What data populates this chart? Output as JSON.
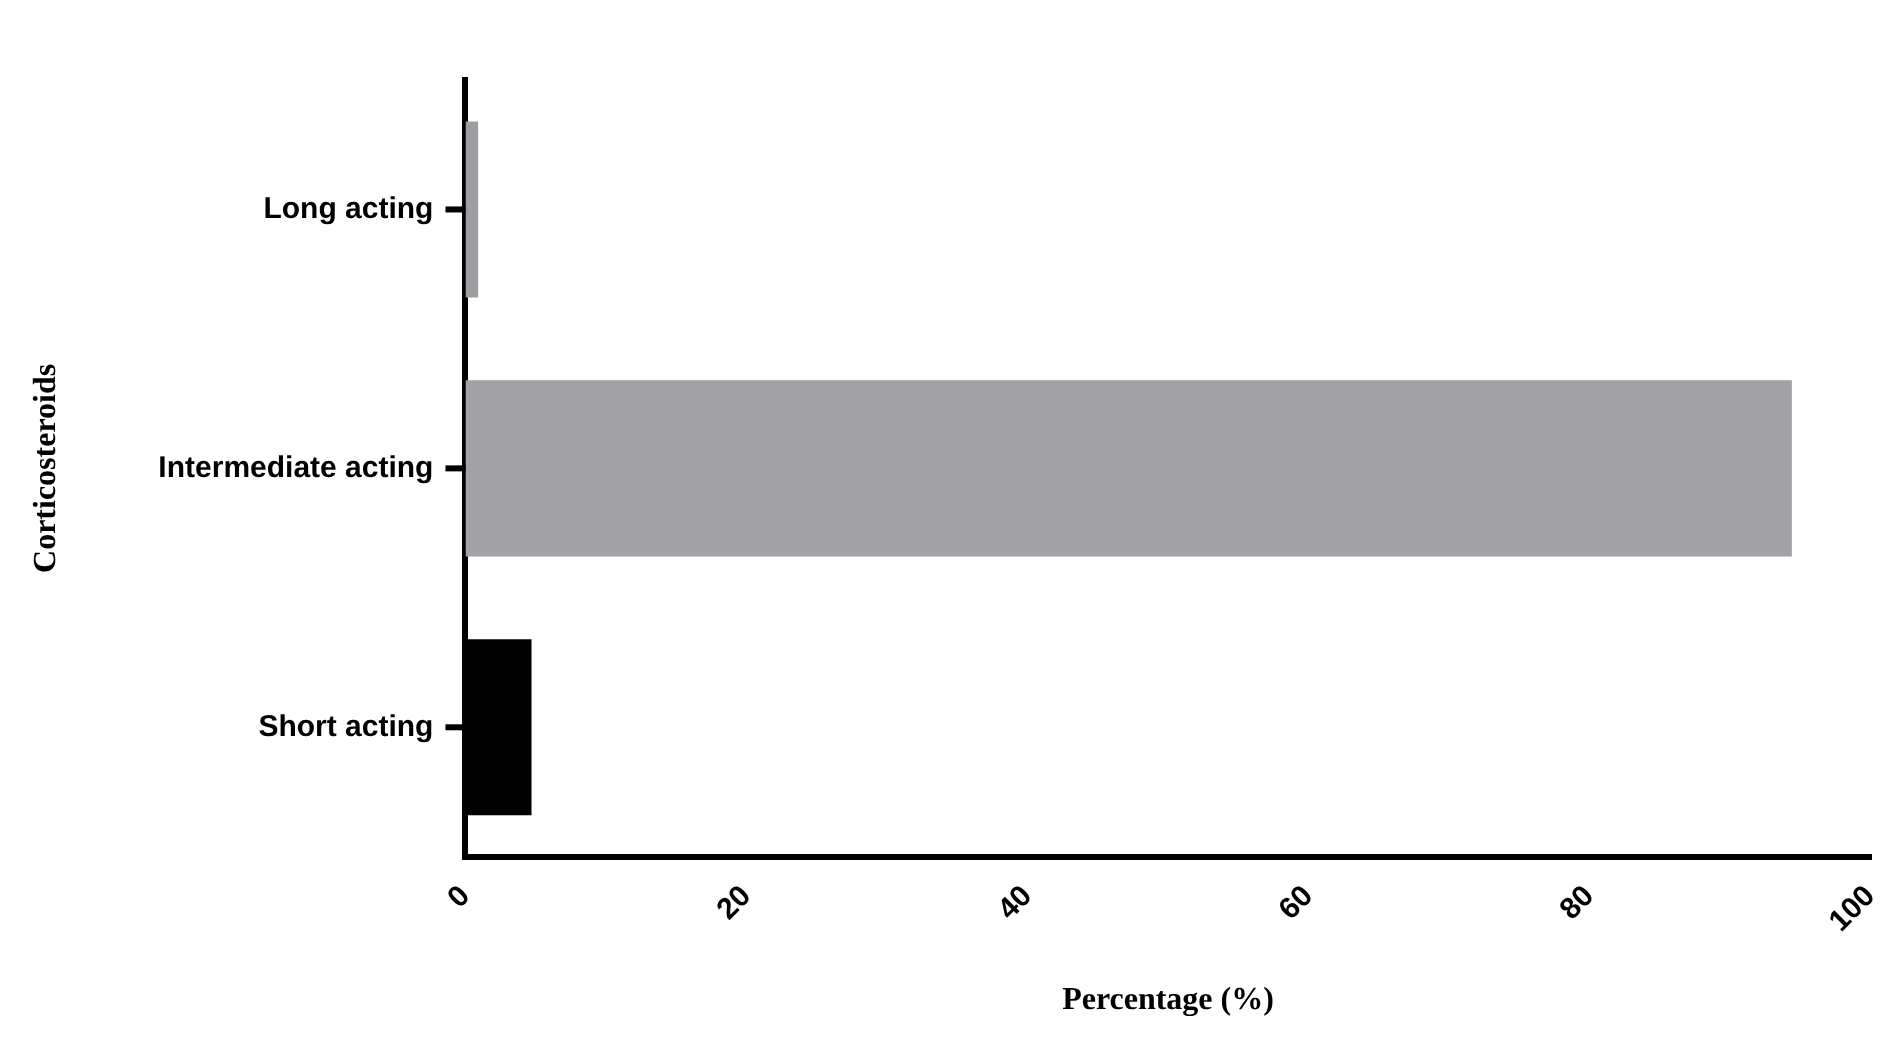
{
  "chart_data": {
    "type": "bar",
    "orientation": "horizontal",
    "xlabel": "Percentage (%)",
    "ylabel": "Corticosteroids",
    "categories": [
      "Long acting",
      "Intermediate acting",
      "Short acting"
    ],
    "values": [
      0.9,
      94.4,
      4.7
    ],
    "colors": [
      "#9e9ea2",
      "#a2a1a6",
      "#000000"
    ],
    "xlim": [
      0,
      100
    ],
    "xticks": [
      0,
      20,
      40,
      60,
      80,
      100
    ],
    "grid": false,
    "legend": false
  }
}
